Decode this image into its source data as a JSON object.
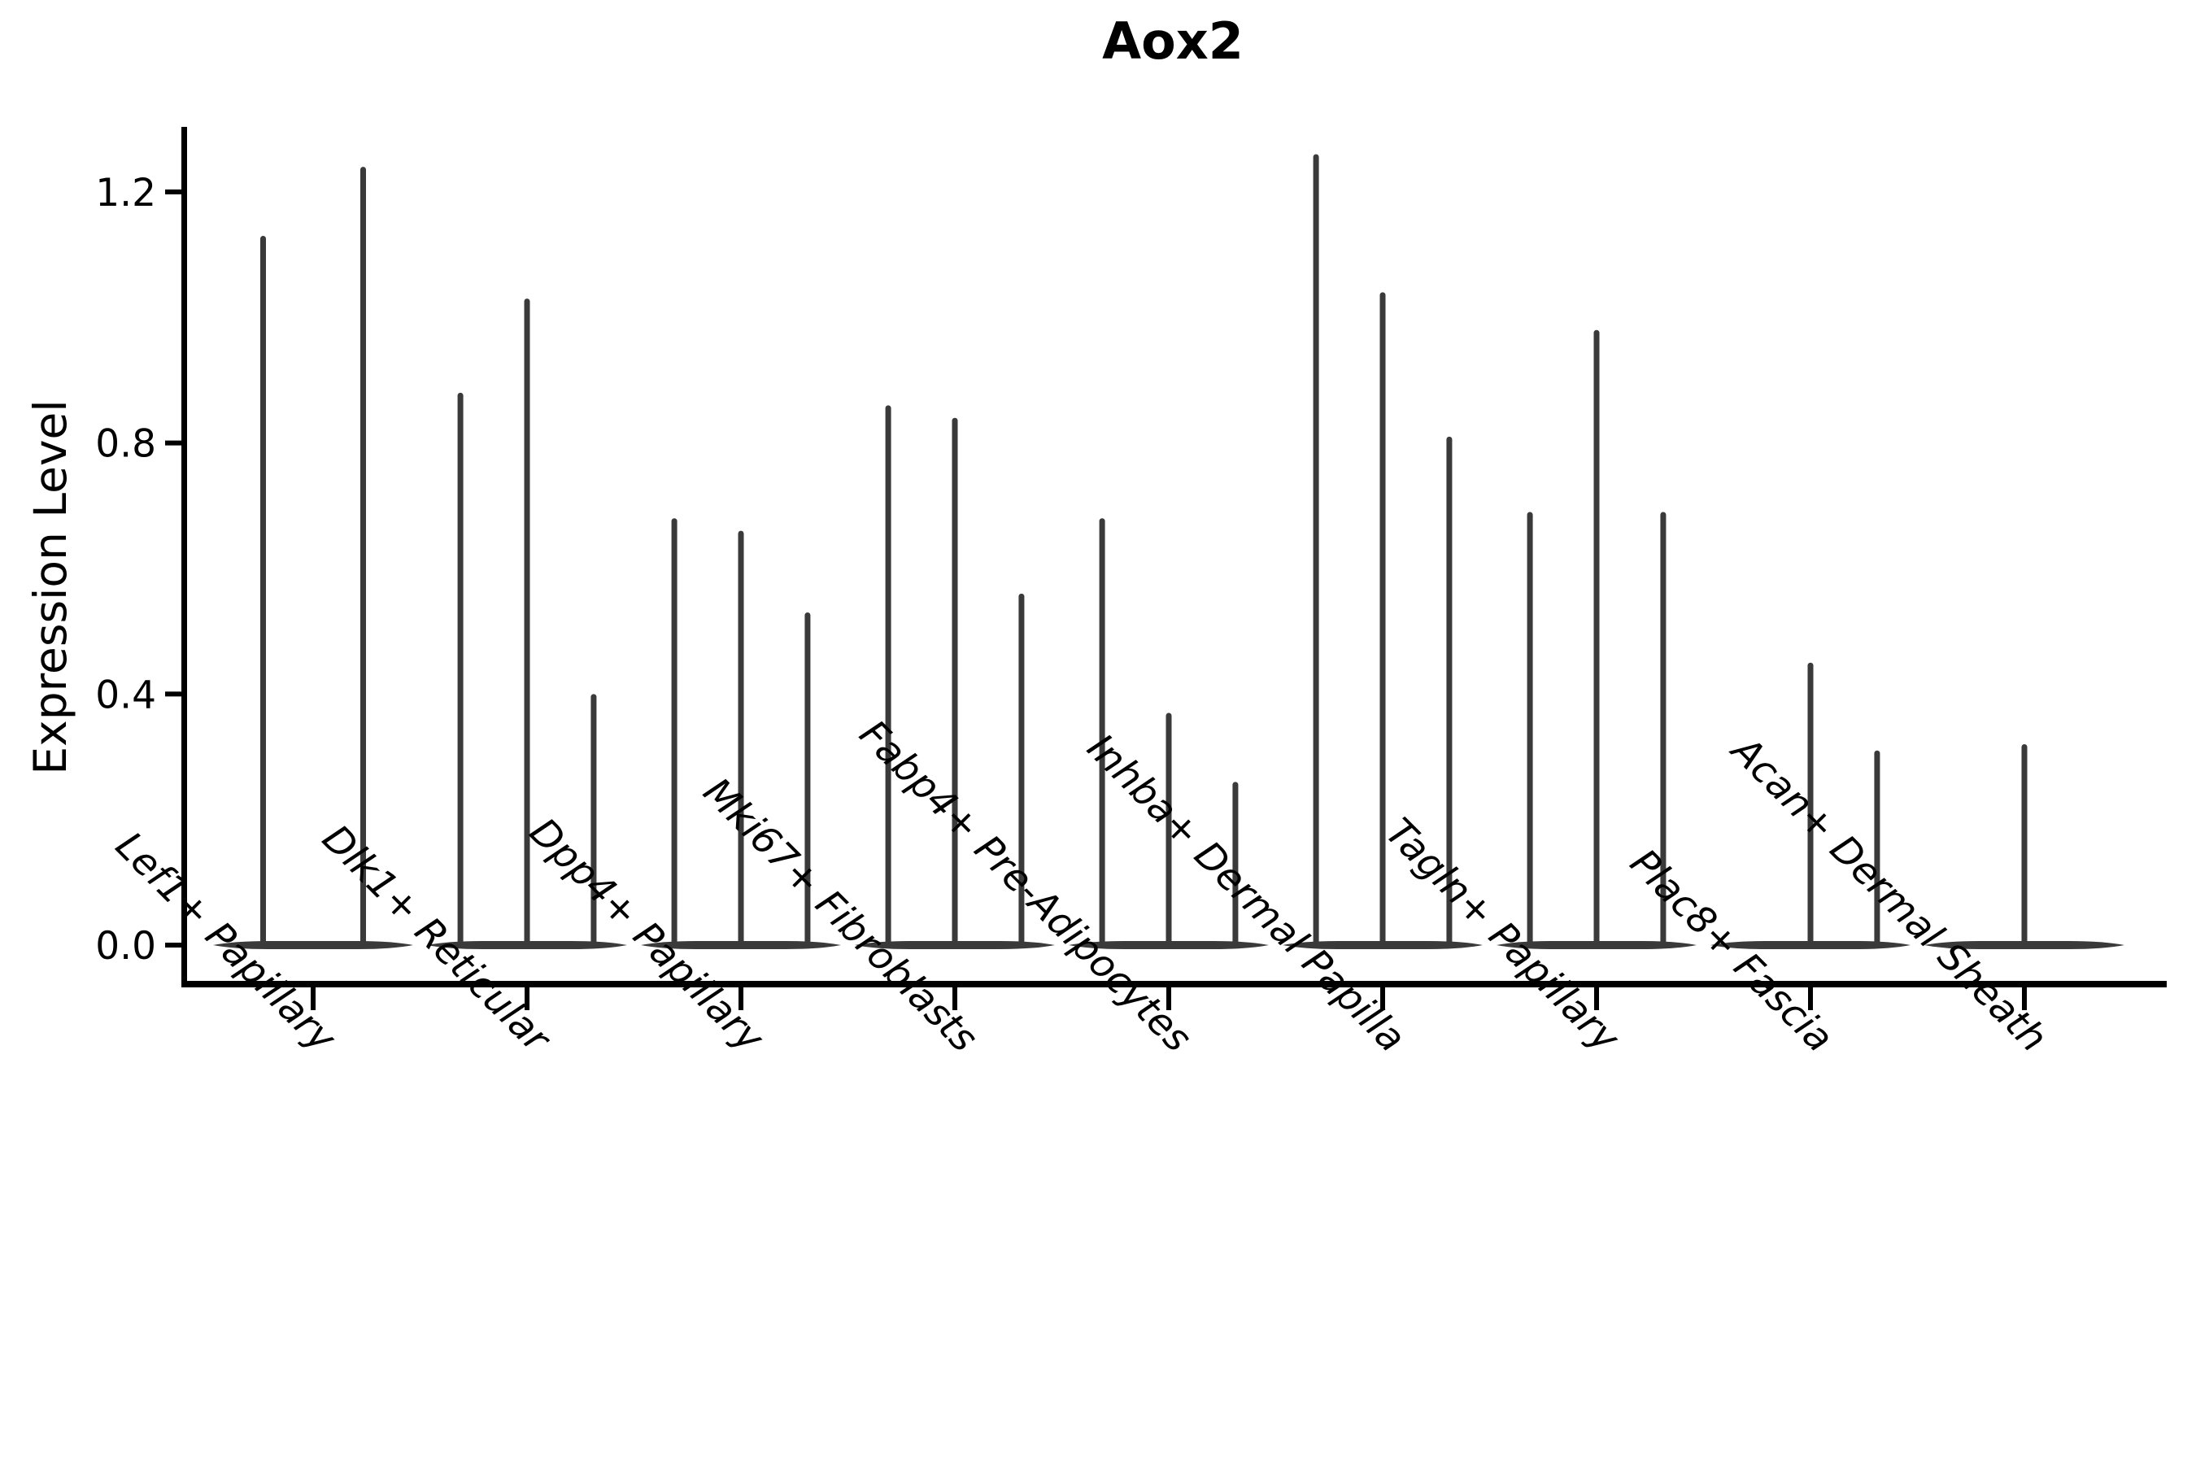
{
  "figure": {
    "background": "#ffffff",
    "axis_color": "#000000",
    "violin_color": "#3a3a3a"
  },
  "chart_data": {
    "type": "violin",
    "title": "Aox2",
    "xlabel": "",
    "ylabel": "Expression Level",
    "grid": false,
    "legend": null,
    "ylim": [
      -0.06,
      1.3
    ],
    "yticks": [
      {
        "label": "0.0",
        "value": 0.0
      },
      {
        "label": "0.4",
        "value": 0.4
      },
      {
        "label": "0.8",
        "value": 0.8
      },
      {
        "label": "1.2",
        "value": 1.2
      }
    ],
    "categories": [
      "Lef1+ Papillary",
      "Dlk1+ Reticular",
      "Dpp4+ Papillary",
      "Mki67+ Fibroblasts",
      "Fabp4+ Pre-Adipocytes",
      "Inhba+ Dermal Papilla",
      "Tagln+ Papillary",
      "Plac8+ Fascia",
      "Acan+ Dermal Sheath"
    ],
    "groups": [
      {
        "label": "Lef1+ Papillary",
        "violins": [
          {
            "offset": -0.25,
            "max": 1.13
          },
          {
            "offset": 0.25,
            "max": 1.24
          }
        ]
      },
      {
        "label": "Dlk1+ Reticular",
        "violins": [
          {
            "offset": -0.333,
            "max": 0.88
          },
          {
            "offset": 0,
            "max": 1.03
          },
          {
            "offset": 0.333,
            "max": 0.4
          }
        ]
      },
      {
        "label": "Dpp4+ Papillary",
        "violins": [
          {
            "offset": -0.333,
            "max": 0.68
          },
          {
            "offset": 0,
            "max": 0.66
          },
          {
            "offset": 0.333,
            "max": 0.53
          }
        ]
      },
      {
        "label": "Mki67+ Fibroblasts",
        "violins": [
          {
            "offset": -0.333,
            "max": 0.86
          },
          {
            "offset": 0,
            "max": 0.84
          },
          {
            "offset": 0.333,
            "max": 0.56
          }
        ]
      },
      {
        "label": "Fabp4+ Pre-Adipocytes",
        "violins": [
          {
            "offset": -0.333,
            "max": 0.68
          },
          {
            "offset": 0,
            "max": 0.37
          },
          {
            "offset": 0.333,
            "max": 0.26
          }
        ]
      },
      {
        "label": "Inhba+ Dermal Papilla",
        "violins": [
          {
            "offset": -0.333,
            "max": 1.26
          },
          {
            "offset": 0,
            "max": 1.04
          },
          {
            "offset": 0.333,
            "max": 0.81
          }
        ]
      },
      {
        "label": "Tagln+ Papillary",
        "violins": [
          {
            "offset": -0.333,
            "max": 0.69
          },
          {
            "offset": 0,
            "max": 0.98
          },
          {
            "offset": 0.333,
            "max": 0.69
          }
        ]
      },
      {
        "label": "Plac8+ Fascia",
        "violins": [
          {
            "offset": -0.333,
            "max": 0.0
          },
          {
            "offset": 0,
            "max": 0.45
          },
          {
            "offset": 0.333,
            "max": 0.31
          }
        ]
      },
      {
        "label": "Acan+ Dermal Sheath",
        "violins": [
          {
            "offset": -0.333,
            "max": 0.0
          },
          {
            "offset": 0,
            "max": 0.32
          },
          {
            "offset": 0.333,
            "max": 0.0
          }
        ]
      }
    ]
  }
}
